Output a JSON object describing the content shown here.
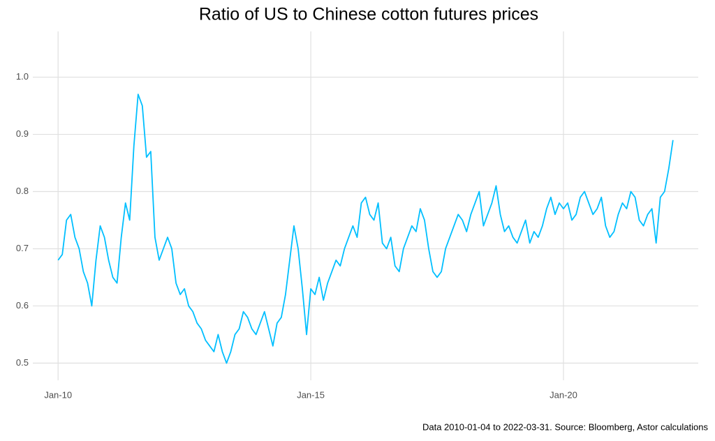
{
  "chart_data": {
    "type": "line",
    "title": "Ratio of US to Chinese cotton futures prices",
    "caption": "Data 2010-01-04 to 2022-03-31.  Source: Bloomberg, Astor calculations",
    "x": [
      "2010-01",
      "2010-02",
      "2010-03",
      "2010-04",
      "2010-05",
      "2010-06",
      "2010-07",
      "2010-08",
      "2010-09",
      "2010-10",
      "2010-11",
      "2010-12",
      "2011-01",
      "2011-02",
      "2011-03",
      "2011-04",
      "2011-05",
      "2011-06",
      "2011-07",
      "2011-08",
      "2011-09",
      "2011-10",
      "2011-11",
      "2011-12",
      "2012-01",
      "2012-02",
      "2012-03",
      "2012-04",
      "2012-05",
      "2012-06",
      "2012-07",
      "2012-08",
      "2012-09",
      "2012-10",
      "2012-11",
      "2012-12",
      "2013-01",
      "2013-02",
      "2013-03",
      "2013-04",
      "2013-05",
      "2013-06",
      "2013-07",
      "2013-08",
      "2013-09",
      "2013-10",
      "2013-11",
      "2013-12",
      "2014-01",
      "2014-02",
      "2014-03",
      "2014-04",
      "2014-05",
      "2014-06",
      "2014-07",
      "2014-08",
      "2014-09",
      "2014-10",
      "2014-11",
      "2014-12",
      "2015-01",
      "2015-02",
      "2015-03",
      "2015-04",
      "2015-05",
      "2015-06",
      "2015-07",
      "2015-08",
      "2015-09",
      "2015-10",
      "2015-11",
      "2015-12",
      "2016-01",
      "2016-02",
      "2016-03",
      "2016-04",
      "2016-05",
      "2016-06",
      "2016-07",
      "2016-08",
      "2016-09",
      "2016-10",
      "2016-11",
      "2016-12",
      "2017-01",
      "2017-02",
      "2017-03",
      "2017-04",
      "2017-05",
      "2017-06",
      "2017-07",
      "2017-08",
      "2017-09",
      "2017-10",
      "2017-11",
      "2017-12",
      "2018-01",
      "2018-02",
      "2018-03",
      "2018-04",
      "2018-05",
      "2018-06",
      "2018-07",
      "2018-08",
      "2018-09",
      "2018-10",
      "2018-11",
      "2018-12",
      "2019-01",
      "2019-02",
      "2019-03",
      "2019-04",
      "2019-05",
      "2019-06",
      "2019-07",
      "2019-08",
      "2019-09",
      "2019-10",
      "2019-11",
      "2019-12",
      "2020-01",
      "2020-02",
      "2020-03",
      "2020-04",
      "2020-05",
      "2020-06",
      "2020-07",
      "2020-08",
      "2020-09",
      "2020-10",
      "2020-11",
      "2020-12",
      "2021-01",
      "2021-02",
      "2021-03",
      "2021-04",
      "2021-05",
      "2021-06",
      "2021-07",
      "2021-08",
      "2021-09",
      "2021-10",
      "2021-11",
      "2021-12",
      "2022-01",
      "2022-02",
      "2022-03"
    ],
    "series": [
      {
        "color": "#00bfff",
        "values": [
          0.68,
          0.69,
          0.75,
          0.76,
          0.72,
          0.7,
          0.66,
          0.64,
          0.6,
          0.68,
          0.74,
          0.72,
          0.68,
          0.65,
          0.64,
          0.72,
          0.78,
          0.75,
          0.88,
          0.97,
          0.95,
          0.86,
          0.87,
          0.72,
          0.68,
          0.7,
          0.72,
          0.7,
          0.64,
          0.62,
          0.63,
          0.6,
          0.59,
          0.57,
          0.56,
          0.54,
          0.53,
          0.52,
          0.55,
          0.52,
          0.5,
          0.52,
          0.55,
          0.56,
          0.59,
          0.58,
          0.56,
          0.55,
          0.57,
          0.59,
          0.56,
          0.53,
          0.57,
          0.58,
          0.62,
          0.68,
          0.74,
          0.7,
          0.63,
          0.55,
          0.63,
          0.62,
          0.65,
          0.61,
          0.64,
          0.66,
          0.68,
          0.67,
          0.7,
          0.72,
          0.74,
          0.72,
          0.78,
          0.79,
          0.76,
          0.75,
          0.78,
          0.71,
          0.7,
          0.72,
          0.67,
          0.66,
          0.7,
          0.72,
          0.74,
          0.73,
          0.77,
          0.75,
          0.7,
          0.66,
          0.65,
          0.66,
          0.7,
          0.72,
          0.74,
          0.76,
          0.75,
          0.73,
          0.76,
          0.78,
          0.8,
          0.74,
          0.76,
          0.78,
          0.81,
          0.76,
          0.73,
          0.74,
          0.72,
          0.71,
          0.73,
          0.75,
          0.71,
          0.73,
          0.72,
          0.74,
          0.77,
          0.79,
          0.76,
          0.78,
          0.77,
          0.78,
          0.75,
          0.76,
          0.79,
          0.8,
          0.78,
          0.76,
          0.77,
          0.79,
          0.74,
          0.72,
          0.73,
          0.76,
          0.78,
          0.77,
          0.8,
          0.79,
          0.75,
          0.74,
          0.76,
          0.77,
          0.71,
          0.79,
          0.8,
          0.84,
          0.89
        ]
      }
    ],
    "xlim": [
      "2009-07",
      "2022-09"
    ],
    "xticks": [
      {
        "value": "2010-01",
        "label": "Jan-10"
      },
      {
        "value": "2015-01",
        "label": "Jan-15"
      },
      {
        "value": "2020-01",
        "label": "Jan-20"
      }
    ],
    "ylim": [
      0.47,
      1.08
    ],
    "yticks": [
      0.5,
      0.6,
      0.7,
      0.8,
      0.9,
      {
        "value": 1,
        "label": "1.0"
      }
    ],
    "grid": true
  }
}
